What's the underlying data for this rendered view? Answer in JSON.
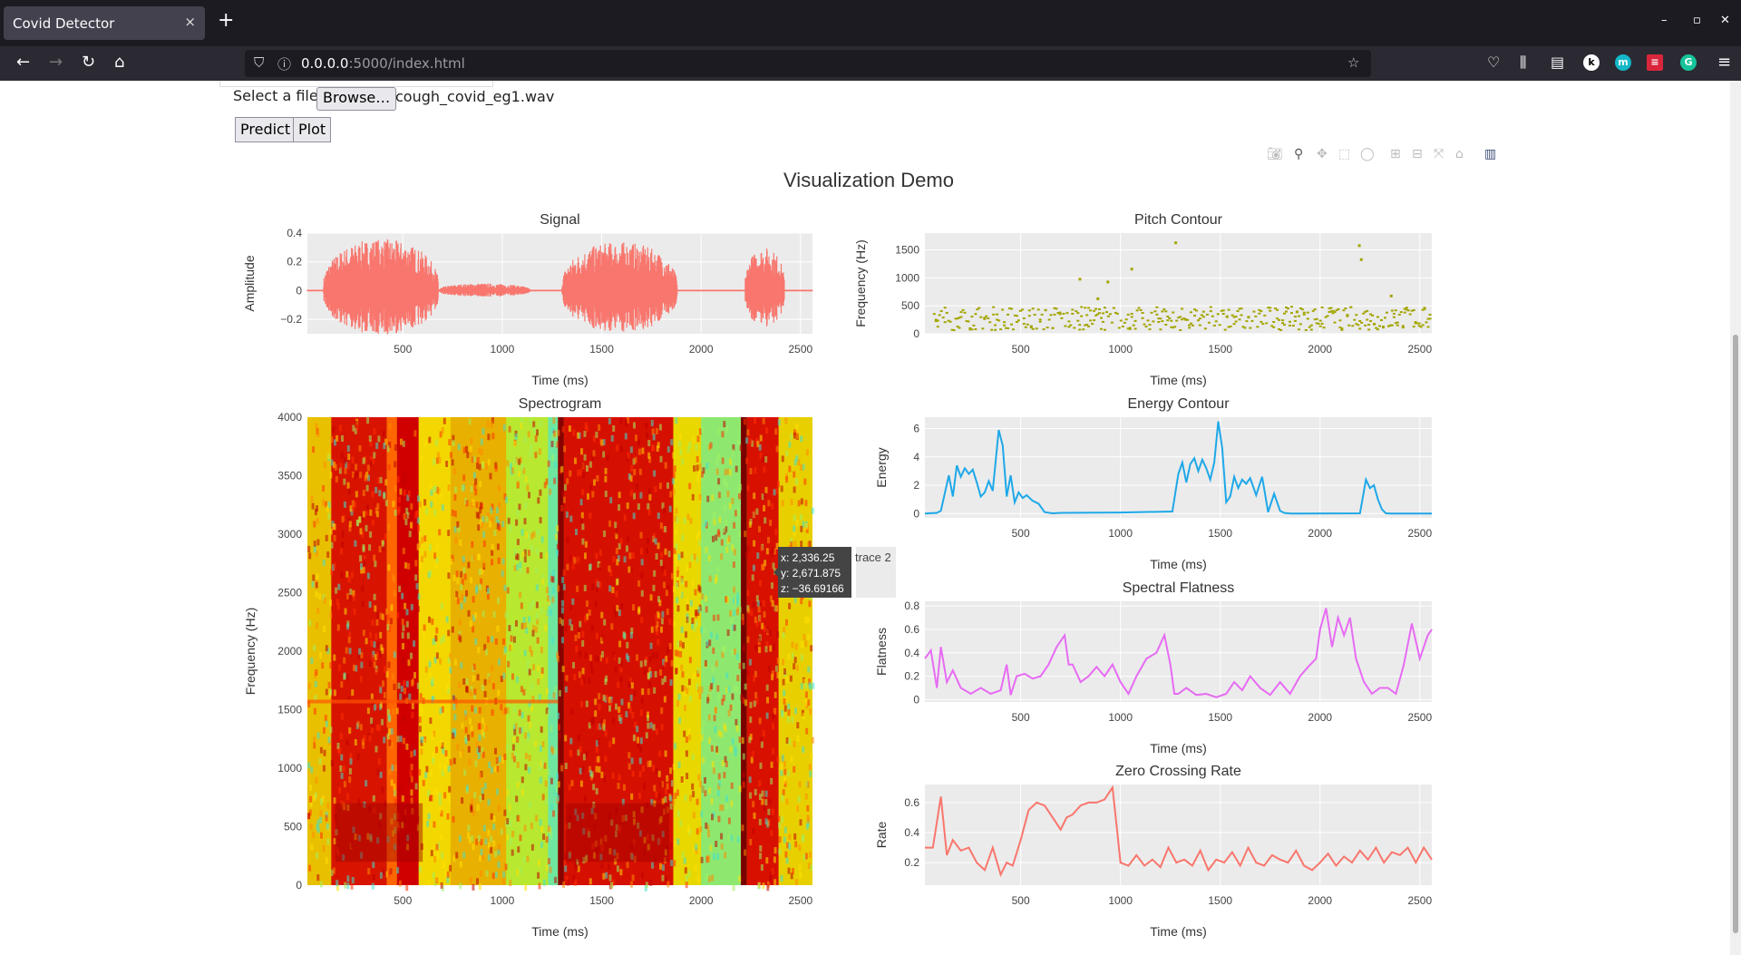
{
  "browser": {
    "tab_title": "Covid Detector",
    "tab_close": "×",
    "new_tab": "+",
    "url_host": "0.0.0.0",
    "url_path": ":5000/index.html",
    "window_controls": [
      "–",
      "▫",
      "✕"
    ]
  },
  "form": {
    "select_label": "Select a file:",
    "browse_label": "Browse…",
    "file_name": "cough_covid_eg1.wav",
    "predict_label": "Predict",
    "plot_label": "Plot"
  },
  "figure": {
    "title": "Visualization Demo",
    "tooltip": {
      "x": "x: 2,336.25",
      "y": "y: 2,671.875",
      "z": "z: −36.69166",
      "trace": "trace 2"
    }
  },
  "colors": {
    "signal": "#f8766d",
    "pitch": "#a3a500",
    "energy": "#1ea8e8",
    "flatness": "#e76bf3",
    "zcr": "#f8766d",
    "plot_bg": "#ebebeb"
  },
  "chart_data": [
    {
      "type": "line",
      "title": "Signal",
      "xlabel": "Time (ms)",
      "ylabel": "Amplitude",
      "xlim": [
        20,
        2560
      ],
      "ylim": [
        -0.3,
        0.4
      ],
      "xticks": [
        "500",
        "1000",
        "1500",
        "2000",
        "2500"
      ],
      "yticks": [
        "0.4",
        "0.2",
        "0",
        "−0.2"
      ],
      "bursts": [
        {
          "start": 100,
          "end": 680,
          "amplitude": 0.36
        },
        {
          "start": 680,
          "end": 1140,
          "amplitude": 0.05
        },
        {
          "start": 1300,
          "end": 1880,
          "amplitude": 0.34
        },
        {
          "start": 2220,
          "end": 2420,
          "amplitude": 0.3
        }
      ]
    },
    {
      "type": "scatter",
      "title": "Pitch Contour",
      "xlabel": "Time (ms)",
      "ylabel": "Frequency (Hz)",
      "xlim": [
        20,
        2560
      ],
      "ylim": [
        0,
        1800
      ],
      "xticks": [
        "500",
        "1000",
        "1500",
        "2000",
        "2500"
      ],
      "yticks": [
        "1500",
        "1000",
        "500",
        "0"
      ],
      "outliers": [
        [
          1270,
          1650
        ],
        [
          2190,
          1600
        ],
        [
          2200,
          1350
        ],
        [
          1050,
          1180
        ],
        [
          930,
          950
        ],
        [
          880,
          650
        ],
        [
          790,
          1000
        ],
        [
          2350,
          700
        ]
      ]
    },
    {
      "type": "heatmap",
      "title": "Spectrogram",
      "xlabel": "Time (ms)",
      "ylabel": "Frequency (Hz)",
      "xlim": [
        20,
        2560
      ],
      "ylim": [
        0,
        4000
      ],
      "xticks": [
        "500",
        "1000",
        "1500",
        "2000",
        "2500"
      ],
      "yticks": [
        "4000",
        "3500",
        "3000",
        "2500",
        "2000",
        "1500",
        "1000",
        "500",
        "0"
      ],
      "colorscale": "Jet (red = high energy, cyan = low energy)",
      "z_hover": -36.69166
    },
    {
      "type": "line",
      "title": "Energy Contour",
      "xlabel": "Time (ms)",
      "ylabel": "Energy",
      "xlim": [
        20,
        2560
      ],
      "ylim": [
        -0.3,
        6.8
      ],
      "xticks": [
        "500",
        "1000",
        "1500",
        "2000",
        "2500"
      ],
      "yticks": [
        "6",
        "4",
        "2",
        "0"
      ],
      "x": [
        20,
        80,
        100,
        140,
        160,
        180,
        200,
        220,
        240,
        260,
        280,
        300,
        320,
        340,
        360,
        390,
        410,
        430,
        450,
        470,
        490,
        510,
        530,
        560,
        590,
        620,
        660,
        700,
        1000,
        1260,
        1290,
        1310,
        1330,
        1350,
        1370,
        1390,
        1410,
        1430,
        1450,
        1470,
        1490,
        1510,
        1530,
        1550,
        1570,
        1590,
        1610,
        1630,
        1650,
        1680,
        1710,
        1740,
        1770,
        1800,
        1820,
        1840,
        1860,
        1880,
        1900,
        2200,
        2230,
        2250,
        2270,
        2290,
        2310,
        2330,
        2360,
        2400,
        2560
      ],
      "values": [
        0,
        0.05,
        0.2,
        2.7,
        1.2,
        3.4,
        2.6,
        3.2,
        2.8,
        3.1,
        2.2,
        1.2,
        1.5,
        2.3,
        1.6,
        5.9,
        4.8,
        1.2,
        2.7,
        0.8,
        1.5,
        1.1,
        1.3,
        0.9,
        0.7,
        0.1,
        0.02,
        0.05,
        0.08,
        0.15,
        2.8,
        3.6,
        2.2,
        3.5,
        3.9,
        3.0,
        3.8,
        3.2,
        2.4,
        3.6,
        6.5,
        4.6,
        0.8,
        1.2,
        2.6,
        1.8,
        2.4,
        2.1,
        2.5,
        1.3,
        2.6,
        0.1,
        1.4,
        0.2,
        0.05,
        0.02,
        0.01,
        0.01,
        0.01,
        0.02,
        2.4,
        1.8,
        2.0,
        1.0,
        0.3,
        0.02,
        0.01,
        0.01,
        0.01
      ]
    },
    {
      "type": "line",
      "title": "Spectral Flatness",
      "xlabel": "Time (ms)",
      "ylabel": "Flatness",
      "xlim": [
        20,
        2560
      ],
      "ylim": [
        -0.02,
        0.84
      ],
      "xticks": [
        "500",
        "1000",
        "1500",
        "2000",
        "2500"
      ],
      "yticks": [
        "0.8",
        "0.6",
        "0.4",
        "0.2",
        "0"
      ],
      "x": [
        20,
        50,
        80,
        100,
        130,
        160,
        200,
        250,
        300,
        350,
        400,
        430,
        450,
        480,
        520,
        560,
        600,
        640,
        680,
        720,
        740,
        760,
        800,
        840,
        880,
        920,
        960,
        1000,
        1020,
        1040,
        1080,
        1130,
        1180,
        1220,
        1250,
        1270,
        1290,
        1330,
        1380,
        1430,
        1480,
        1530,
        1570,
        1610,
        1650,
        1700,
        1750,
        1800,
        1850,
        1900,
        1940,
        1980,
        2000,
        2030,
        2060,
        2090,
        2120,
        2150,
        2180,
        2220,
        2260,
        2300,
        2340,
        2380,
        2420,
        2460,
        2500,
        2540,
        2560
      ],
      "values": [
        0.35,
        0.42,
        0.1,
        0.45,
        0.15,
        0.25,
        0.1,
        0.05,
        0.1,
        0.05,
        0.08,
        0.3,
        0.04,
        0.2,
        0.22,
        0.18,
        0.2,
        0.3,
        0.45,
        0.55,
        0.3,
        0.3,
        0.15,
        0.2,
        0.28,
        0.2,
        0.3,
        0.15,
        0.1,
        0.05,
        0.2,
        0.35,
        0.4,
        0.55,
        0.3,
        0.05,
        0.05,
        0.1,
        0.04,
        0.05,
        0.02,
        0.05,
        0.15,
        0.08,
        0.2,
        0.1,
        0.04,
        0.15,
        0.05,
        0.2,
        0.28,
        0.35,
        0.6,
        0.78,
        0.45,
        0.7,
        0.55,
        0.7,
        0.35,
        0.15,
        0.05,
        0.1,
        0.1,
        0.05,
        0.3,
        0.65,
        0.35,
        0.55,
        0.6
      ]
    },
    {
      "type": "line",
      "title": "Zero Crossing Rate",
      "xlabel": "Time (ms)",
      "ylabel": "Rate",
      "xlim": [
        20,
        2560
      ],
      "ylim": [
        0.05,
        0.72
      ],
      "xticks": [
        "500",
        "1000",
        "1500",
        "2000",
        "2500"
      ],
      "yticks": [
        "0.6",
        "0.4",
        "0.2"
      ],
      "x": [
        20,
        60,
        100,
        130,
        160,
        200,
        240,
        280,
        320,
        360,
        400,
        430,
        460,
        500,
        540,
        580,
        620,
        660,
        700,
        730,
        760,
        800,
        840,
        880,
        920,
        960,
        1000,
        1040,
        1080,
        1120,
        1160,
        1200,
        1240,
        1280,
        1320,
        1360,
        1400,
        1440,
        1480,
        1520,
        1560,
        1600,
        1640,
        1680,
        1720,
        1760,
        1800,
        1840,
        1880,
        1920,
        1960,
        2000,
        2040,
        2080,
        2120,
        2160,
        2200,
        2240,
        2280,
        2320,
        2360,
        2400,
        2440,
        2480,
        2520,
        2560
      ],
      "values": [
        0.3,
        0.3,
        0.64,
        0.25,
        0.35,
        0.28,
        0.3,
        0.2,
        0.15,
        0.3,
        0.12,
        0.2,
        0.18,
        0.35,
        0.55,
        0.6,
        0.58,
        0.5,
        0.42,
        0.5,
        0.52,
        0.58,
        0.6,
        0.6,
        0.62,
        0.7,
        0.2,
        0.18,
        0.25,
        0.18,
        0.22,
        0.17,
        0.3,
        0.2,
        0.22,
        0.18,
        0.28,
        0.15,
        0.22,
        0.2,
        0.27,
        0.18,
        0.3,
        0.2,
        0.18,
        0.25,
        0.22,
        0.2,
        0.28,
        0.18,
        0.15,
        0.2,
        0.26,
        0.18,
        0.24,
        0.2,
        0.28,
        0.22,
        0.3,
        0.2,
        0.27,
        0.25,
        0.3,
        0.2,
        0.3,
        0.22
      ]
    }
  ]
}
